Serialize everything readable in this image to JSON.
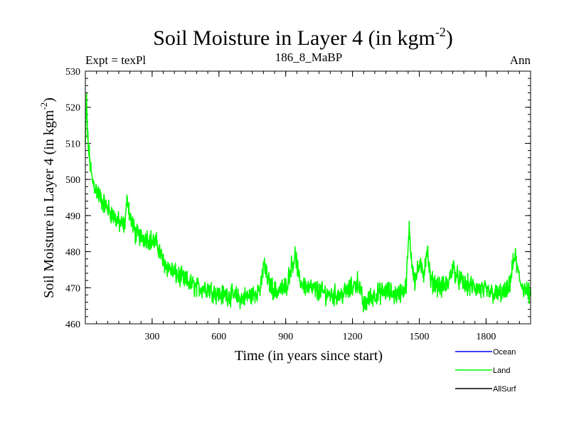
{
  "chart_data": {
    "type": "line",
    "title": "Soil Moisture in Layer 4 (in kgm",
    "title_sup": "-2",
    "title_close": ")",
    "subtitle_left": "Expt = texPl",
    "subtitle_center": "186_8_MaBP",
    "subtitle_right": "Ann",
    "xlabel": "Time (in years since start)",
    "ylabel": "Soil Moisture in Layer 4 (in kgm",
    "ylabel_sup": "-2",
    "ylabel_close": ")",
    "xlim": [
      0,
      2000
    ],
    "ylim": [
      460,
      530
    ],
    "xticks": [
      300,
      600,
      900,
      1200,
      1500,
      1800
    ],
    "yticks": [
      460,
      470,
      480,
      490,
      500,
      510,
      520,
      530
    ],
    "legend": [
      {
        "name": "Ocean",
        "color": "#0000ff"
      },
      {
        "name": "Land",
        "color": "#00ff00"
      },
      {
        "name": "AllSurf",
        "color": "#000000"
      }
    ],
    "series": [
      {
        "name": "Land",
        "color": "#00ff00",
        "x": [
          0,
          5,
          10,
          20,
          30,
          50,
          75,
          100,
          125,
          150,
          175,
          190,
          200,
          225,
          250,
          275,
          300,
          325,
          350,
          400,
          450,
          500,
          550,
          600,
          650,
          700,
          750,
          790,
          800,
          820,
          850,
          900,
          930,
          945,
          960,
          1000,
          1050,
          1100,
          1150,
          1200,
          1225,
          1250,
          1275,
          1300,
          1350,
          1400,
          1440,
          1455,
          1465,
          1480,
          1500,
          1520,
          1535,
          1550,
          1600,
          1630,
          1650,
          1670,
          1700,
          1750,
          1800,
          1850,
          1900,
          1920,
          1930,
          1950,
          1980,
          2000
        ],
        "y": [
          510,
          522,
          512,
          505,
          500,
          497,
          494,
          492,
          490,
          488,
          487,
          495,
          490,
          485,
          484,
          484,
          483,
          482,
          477,
          474,
          472,
          470,
          470,
          468,
          468,
          467,
          468,
          470,
          477,
          472,
          469,
          470,
          477,
          479,
          472,
          470,
          469,
          468,
          468,
          470,
          472,
          465,
          467,
          468,
          469,
          468,
          470,
          486,
          478,
          472,
          476,
          474,
          481,
          472,
          470,
          471,
          476,
          473,
          471,
          470,
          469,
          468,
          469,
          476,
          479,
          472,
          469,
          468
        ]
      }
    ]
  }
}
